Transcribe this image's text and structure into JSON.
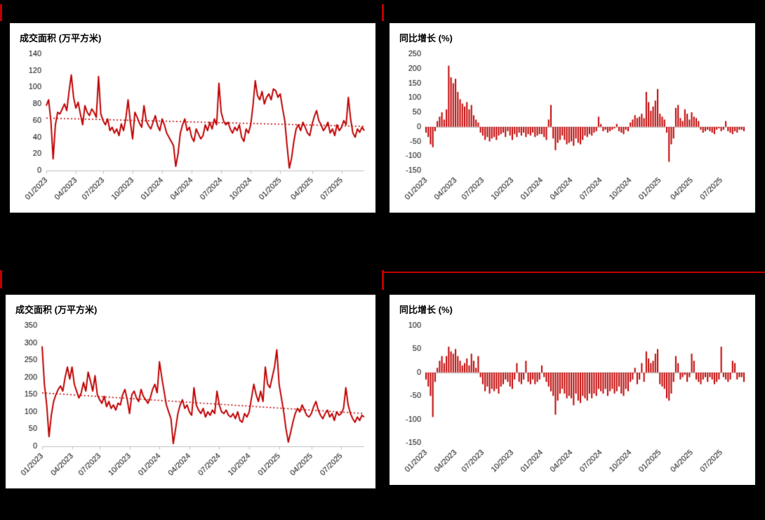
{
  "page": {
    "background": "#000000",
    "accent_red": "#C00000",
    "axis_gray": "#BFBFBF"
  },
  "chart_data": [
    {
      "id": "top-left",
      "type": "line",
      "title": "成交面积 (万平方米)",
      "color": "#C00000",
      "ylim": [
        0,
        140
      ],
      "yticks": [
        0,
        20,
        40,
        60,
        80,
        100,
        120,
        140
      ],
      "x_tick_labels": [
        "01/2023",
        "04/2023",
        "07/2023",
        "10/2023",
        "01/2024",
        "04/2024",
        "07/2024",
        "10/2024",
        "01/2025",
        "04/2025",
        "07/2025"
      ],
      "x_tick_indices": [
        0,
        13,
        25,
        38,
        51,
        64,
        77,
        90,
        103,
        117,
        130
      ],
      "trend": [
        63,
        53
      ],
      "values": [
        78,
        85,
        60,
        14,
        55,
        70,
        68,
        74,
        80,
        72,
        95,
        115,
        88,
        75,
        82,
        68,
        55,
        78,
        70,
        66,
        74,
        70,
        64,
        113,
        68,
        60,
        55,
        62,
        48,
        52,
        45,
        50,
        42,
        56,
        48,
        62,
        85,
        58,
        38,
        70,
        64,
        57,
        52,
        78,
        60,
        54,
        50,
        58,
        66,
        54,
        48,
        62,
        55,
        45,
        40,
        35,
        30,
        5,
        20,
        45,
        55,
        62,
        48,
        52,
        40,
        35,
        50,
        44,
        38,
        42,
        55,
        48,
        58,
        50,
        62,
        55,
        105,
        70,
        60,
        55,
        58,
        50,
        45,
        52,
        48,
        55,
        40,
        35,
        50,
        45,
        55,
        78,
        108,
        90,
        85,
        95,
        80,
        88,
        92,
        85,
        98,
        96,
        88,
        92,
        75,
        60,
        30,
        3,
        15,
        35,
        50,
        55,
        48,
        58,
        52,
        45,
        42,
        55,
        65,
        72,
        60,
        55,
        48,
        52,
        58,
        45,
        50,
        42,
        55,
        48,
        52,
        60,
        55,
        88,
        62,
        45,
        40,
        50,
        46,
        52,
        48
      ]
    },
    {
      "id": "top-right",
      "type": "bar",
      "title": "同比增长 (%)",
      "color": "#C00000",
      "ylim": [
        -150,
        250
      ],
      "yticks": [
        -150,
        -100,
        -50,
        0,
        50,
        100,
        150,
        200,
        250
      ],
      "x_tick_labels": [
        "01/2023",
        "04/2023",
        "07/2023",
        "10/2023",
        "01/2024",
        "04/2024",
        "07/2024",
        "10/2024",
        "01/2025",
        "04/2025",
        "07/2025"
      ],
      "x_tick_indices": [
        0,
        13,
        25,
        38,
        51,
        64,
        77,
        90,
        103,
        117,
        130
      ],
      "values": [
        -20,
        -35,
        -60,
        -70,
        -15,
        20,
        35,
        50,
        25,
        60,
        210,
        170,
        150,
        165,
        120,
        95,
        80,
        70,
        85,
        60,
        75,
        40,
        25,
        15,
        -20,
        -30,
        -45,
        -35,
        -50,
        -40,
        -35,
        -45,
        -30,
        -25,
        -20,
        -35,
        -15,
        -30,
        -45,
        -25,
        -35,
        -20,
        -30,
        -20,
        -35,
        -25,
        -30,
        -20,
        -35,
        -30,
        -25,
        -25,
        -35,
        -45,
        25,
        75,
        -40,
        -80,
        -55,
        -45,
        -30,
        -45,
        -60,
        -55,
        -50,
        -65,
        -40,
        -55,
        -60,
        -45,
        -30,
        -35,
        -25,
        -30,
        -20,
        -15,
        35,
        10,
        -15,
        -10,
        -20,
        -15,
        -10,
        -5,
        10,
        -15,
        -20,
        -25,
        -10,
        -15,
        15,
        25,
        40,
        30,
        35,
        45,
        30,
        120,
        85,
        55,
        70,
        90,
        130,
        45,
        35,
        25,
        -20,
        -120,
        -60,
        -40,
        65,
        75,
        30,
        20,
        60,
        45,
        25,
        50,
        35,
        30,
        20,
        -10,
        -20,
        -15,
        -10,
        -15,
        -20,
        -25,
        -10,
        -5,
        -15,
        -10,
        20,
        -15,
        -20,
        -25,
        -15,
        -20,
        -10,
        -10,
        -15
      ]
    },
    {
      "id": "bottom-left",
      "type": "line",
      "title": "成交面积 (万平方米)",
      "color": "#C00000",
      "ylim": [
        0,
        350
      ],
      "yticks": [
        0,
        50,
        100,
        150,
        200,
        250,
        300,
        350
      ],
      "x_tick_labels": [
        "01/2023",
        "04/2023",
        "07/2023",
        "10/2023",
        "01/2024",
        "04/2024",
        "07/2024",
        "10/2024",
        "01/2025",
        "04/2025",
        "07/2025"
      ],
      "x_tick_indices": [
        0,
        13,
        25,
        38,
        51,
        64,
        77,
        90,
        103,
        117,
        130
      ],
      "trend": [
        155,
        95
      ],
      "values": [
        290,
        180,
        120,
        28,
        90,
        130,
        150,
        165,
        175,
        160,
        200,
        230,
        195,
        230,
        180,
        160,
        140,
        155,
        185,
        160,
        215,
        190,
        160,
        205,
        150,
        135,
        125,
        145,
        115,
        130,
        110,
        120,
        105,
        125,
        120,
        150,
        165,
        135,
        95,
        150,
        160,
        140,
        130,
        165,
        145,
        135,
        125,
        140,
        165,
        180,
        155,
        245,
        200,
        160,
        120,
        100,
        80,
        8,
        50,
        95,
        120,
        135,
        110,
        120,
        100,
        90,
        170,
        120,
        105,
        95,
        110,
        85,
        100,
        90,
        105,
        95,
        160,
        120,
        100,
        95,
        105,
        90,
        85,
        95,
        80,
        100,
        75,
        70,
        95,
        85,
        100,
        140,
        180,
        150,
        130,
        160,
        130,
        230,
        180,
        170,
        200,
        230,
        280,
        180,
        140,
        100,
        50,
        12,
        40,
        70,
        95,
        110,
        100,
        120,
        105,
        90,
        85,
        95,
        115,
        130,
        105,
        90,
        80,
        95,
        105,
        85,
        95,
        75,
        100,
        90,
        95,
        110,
        170,
        120,
        95,
        80,
        70,
        85,
        75,
        90,
        85
      ]
    },
    {
      "id": "bottom-right",
      "type": "bar",
      "title": "同比增长 (%)",
      "color": "#C00000",
      "ylim": [
        -150,
        100
      ],
      "yticks": [
        -150,
        -100,
        -50,
        0,
        50,
        100
      ],
      "x_tick_labels": [
        "01/2023",
        "04/2023",
        "07/2023",
        "10/2023",
        "01/2024",
        "04/2024",
        "07/2024",
        "10/2024",
        "01/2025",
        "04/2025",
        "07/2025"
      ],
      "x_tick_indices": [
        0,
        13,
        25,
        38,
        51,
        64,
        77,
        90,
        103,
        117,
        130
      ],
      "values": [
        -15,
        -30,
        -50,
        -95,
        -20,
        10,
        25,
        35,
        20,
        35,
        55,
        45,
        40,
        50,
        35,
        25,
        15,
        20,
        30,
        15,
        40,
        25,
        10,
        35,
        -10,
        -25,
        -40,
        -30,
        -45,
        -35,
        -40,
        -35,
        -45,
        -30,
        -25,
        -15,
        -20,
        -30,
        -35,
        -15,
        20,
        -20,
        -25,
        -15,
        25,
        -20,
        -25,
        -15,
        -25,
        -20,
        -15,
        15,
        -10,
        -20,
        -30,
        -40,
        -50,
        -90,
        -60,
        -45,
        -35,
        -45,
        -55,
        -50,
        -55,
        -70,
        -45,
        -60,
        -65,
        -50,
        -55,
        -60,
        -45,
        -55,
        -45,
        -50,
        -35,
        -40,
        -45,
        -35,
        -50,
        -40,
        -35,
        -45,
        -40,
        -30,
        -45,
        -50,
        -35,
        -40,
        -20,
        -15,
        10,
        -25,
        -15,
        20,
        -20,
        45,
        30,
        20,
        25,
        40,
        50,
        -25,
        -30,
        -35,
        -55,
        -60,
        -45,
        -20,
        35,
        20,
        -15,
        -10,
        -5,
        -20,
        -10,
        40,
        25,
        -15,
        -20,
        -25,
        -15,
        -10,
        -20,
        -10,
        -15,
        -25,
        -20,
        -15,
        55,
        -10,
        -15,
        -20,
        -15,
        25,
        20,
        -15,
        -10,
        -10,
        -20
      ]
    }
  ]
}
